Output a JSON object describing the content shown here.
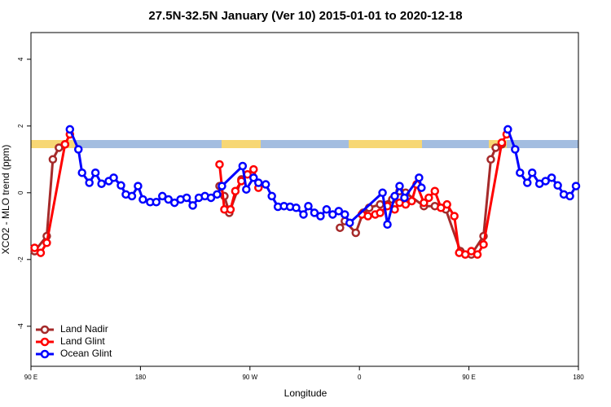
{
  "chart_data": {
    "type": "line",
    "title": "27.5N-32.5N January (Ver 10)   2015-01-01 to 2020-12-18",
    "x_label": "Longitude",
    "y_label": "XCO2 - MLO trend (ppm)",
    "xlim": [
      90,
      540
    ],
    "xticks": [
      {
        "value": 90,
        "label": "90 E"
      },
      180,
      {
        "value": 270,
        "label": "90 W"
      },
      {
        "value": 360,
        "label": "0"
      },
      {
        "value": 450,
        "label": "90 E"
      },
      {
        "value": 540,
        "label": "180"
      }
    ],
    "ylim": [
      -5.2,
      4.8
    ],
    "yticks": [
      4,
      2,
      0,
      -2,
      -4
    ],
    "legend": "bottom-left",
    "series": [
      {
        "name": "Land Nadir",
        "color": "#a52a2a",
        "x": [
          93,
          103,
          108,
          113,
          118,
          200,
          245,
          249,
          253,
          263,
          330,
          344,
          348,
          357,
          363,
          368,
          377,
          387,
          393,
          398,
          413,
          422,
          431,
          443,
          452,
          462,
          468,
          472,
          477
        ],
        "values": [
          -1.75,
          -1.3,
          1.0,
          1.35,
          1.45,
          null,
          0.2,
          -0.1,
          -0.6,
          0.4,
          null,
          -1.05,
          -0.85,
          -1.2,
          -0.6,
          -0.45,
          -0.35,
          -0.2,
          0.05,
          0.0,
          -0.4,
          -0.4,
          -0.5,
          -1.75,
          -1.85,
          -1.3,
          1.0,
          1.35,
          1.45
        ]
      },
      {
        "name": "Land Glint",
        "color": "#ff0000",
        "x": [
          93,
          98,
          103,
          118,
          122,
          190,
          245,
          249,
          254,
          258,
          263,
          268,
          273,
          277,
          320,
          362,
          367,
          373,
          377,
          383,
          389,
          393,
          398,
          403,
          407,
          413,
          417,
          422,
          427,
          432,
          438,
          442,
          447,
          452,
          457,
          462,
          477,
          481
        ],
        "values": [
          -1.65,
          -1.8,
          -1.5,
          1.45,
          1.75,
          null,
          0.85,
          -0.5,
          -0.5,
          0.05,
          0.35,
          0.55,
          0.7,
          0.15,
          null,
          -0.65,
          -0.7,
          -0.65,
          -0.6,
          -0.4,
          -0.5,
          -0.3,
          -0.35,
          -0.25,
          0.25,
          -0.3,
          -0.15,
          0.05,
          -0.45,
          -0.35,
          -0.7,
          -1.8,
          -1.85,
          -1.75,
          -1.85,
          -1.55,
          1.5,
          1.75
        ]
      },
      {
        "name": "Ocean Glint",
        "color": "#0000ff",
        "x": [
          122,
          129,
          132,
          138,
          143,
          148,
          154,
          158,
          164,
          168,
          173,
          178,
          182,
          188,
          193,
          198,
          203,
          208,
          213,
          218,
          223,
          228,
          233,
          238,
          243,
          247,
          264,
          267,
          273,
          277,
          283,
          288,
          293,
          298,
          303,
          308,
          314,
          318,
          323,
          328,
          333,
          338,
          343,
          348,
          352,
          379,
          383,
          389,
          393,
          397,
          409,
          411,
          450,
          482,
          488,
          492,
          498,
          502,
          508,
          513,
          518,
          523,
          528,
          533,
          538
        ],
        "values": [
          1.9,
          1.3,
          0.6,
          0.3,
          0.6,
          0.27,
          0.35,
          0.45,
          0.22,
          -0.05,
          -0.1,
          0.2,
          -0.2,
          -0.28,
          -0.28,
          -0.1,
          -0.2,
          -0.3,
          -0.2,
          -0.15,
          -0.38,
          -0.15,
          -0.1,
          -0.15,
          -0.05,
          0.2,
          0.8,
          0.1,
          0.45,
          0.3,
          0.25,
          -0.1,
          -0.42,
          -0.4,
          -0.42,
          -0.45,
          -0.65,
          -0.4,
          -0.6,
          -0.7,
          -0.5,
          -0.65,
          -0.55,
          -0.65,
          -0.9,
          0.0,
          -0.95,
          -0.1,
          0.2,
          -0.15,
          0.45,
          0.15,
          null,
          1.9,
          1.3,
          0.6,
          0.3,
          0.6,
          0.27,
          0.35,
          0.45,
          0.22,
          -0.05,
          -0.1,
          0.2
        ]
      }
    ]
  }
}
